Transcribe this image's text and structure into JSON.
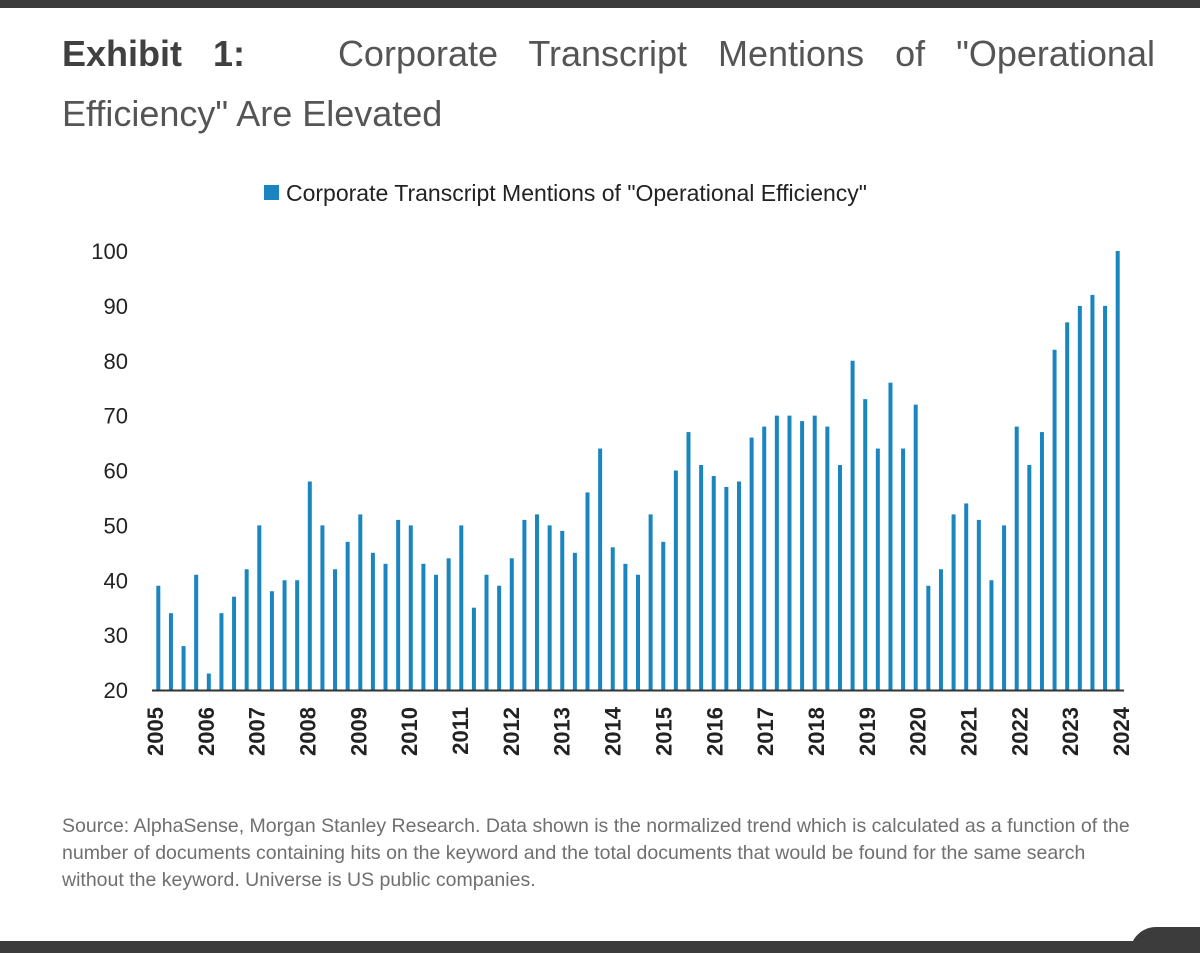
{
  "title": {
    "lead": "Exhibit 1:",
    "text": "Corporate Transcript Mentions of \"Operational Efficiency\" Are Elevated"
  },
  "source": "Source: AlphaSense, Morgan Stanley Research. Data shown is the normalized trend which is calculated as a function of the number of documents containing hits on the keyword and the total documents that would be found for the same search without the keyword. Universe is US public companies.",
  "chart_data": {
    "type": "bar",
    "title": "",
    "xlabel": "",
    "ylabel": "",
    "ylim": [
      20,
      100
    ],
    "yticks": [
      20,
      30,
      40,
      50,
      60,
      70,
      80,
      90,
      100
    ],
    "grid": false,
    "legend_position": "top-center",
    "bar_color": "#1a85bf",
    "x_tick_labels": [
      "2005",
      "2006",
      "2007",
      "2008",
      "2009",
      "2010",
      "2011",
      "2012",
      "2013",
      "2014",
      "2015",
      "2016",
      "2017",
      "2018",
      "2019",
      "2020",
      "2021",
      "2022",
      "2023",
      "2024"
    ],
    "series": [
      {
        "name": "Corporate Transcript Mentions of \"Operational Efficiency\"",
        "values": [
          39,
          34,
          28,
          41,
          23,
          34,
          37,
          42,
          50,
          38,
          40,
          40,
          58,
          50,
          42,
          47,
          52,
          45,
          43,
          51,
          50,
          43,
          41,
          44,
          50,
          35,
          41,
          39,
          44,
          51,
          52,
          50,
          49,
          45,
          56,
          64,
          46,
          43,
          41,
          52,
          47,
          60,
          67,
          61,
          59,
          57,
          58,
          66,
          68,
          70,
          70,
          69,
          70,
          68,
          61,
          80,
          73,
          64,
          76,
          64,
          72,
          39,
          42,
          52,
          54,
          51,
          40,
          50,
          68,
          61,
          67,
          82,
          87,
          90,
          92,
          90,
          100
        ]
      }
    ]
  }
}
